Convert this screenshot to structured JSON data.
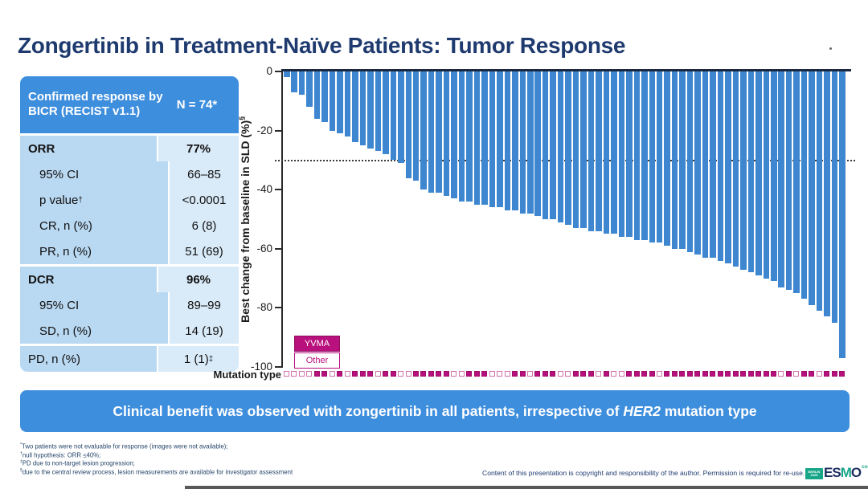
{
  "slide": {
    "title": "Zongertinib in Treatment-Naïve Patients: Tumor Response",
    "banner": {
      "text_before": "Clinical benefit was observed with zongertinib in all patients, irrespective of ",
      "gene": "HER2",
      "text_after": " mutation type"
    },
    "footnotes": [
      {
        "sup": "*",
        "text": "Two patients were not evaluable for response (images were not available);"
      },
      {
        "sup": "†",
        "text": "null hypothesis: ORR ≤40%;"
      },
      {
        "sup": "‡",
        "text": "PD due to non-target lesion progression;"
      },
      {
        "sup": "§",
        "text": "due to the central review process, lesion measurements are available for investigator assessment"
      }
    ],
    "copyright": "Content of this presentation is copyright and responsibility of the author. Permission is required for re-use.",
    "logo": {
      "badge": "BERLIN 2025",
      "name_es": "ES",
      "name_m": "M",
      "name_o": "O",
      "suffix": "congress"
    }
  },
  "table": {
    "header": {
      "title": "Confirmed response by BICR (RECIST v1.1)",
      "n": "N = 74*"
    },
    "rows": [
      {
        "label": "ORR",
        "value": "77%",
        "bold": true,
        "group_start": true
      },
      {
        "label": "95% CI",
        "value": "66–85",
        "indent": true
      },
      {
        "label": "p value",
        "label_sup": "†",
        "value": "<0.0001",
        "indent": true
      },
      {
        "label": "CR, n (%)",
        "value": "6 (8)",
        "indent": true
      },
      {
        "label": "PR, n (%)",
        "value": "51 (69)",
        "indent": true
      },
      {
        "label": "DCR",
        "value": "96%",
        "bold": true,
        "group_start": true
      },
      {
        "label": "95% CI",
        "value": "89–99",
        "indent": true
      },
      {
        "label": "SD, n (%)",
        "value": "14 (19)",
        "indent": true
      },
      {
        "label": "PD, n (%)",
        "value": "1 (1)",
        "value_sup": "‡",
        "group_start": true
      }
    ]
  },
  "chart_data": {
    "type": "bar",
    "subtype": "waterfall",
    "title": "",
    "ylabel": "Best change from baseline in SLD (%)",
    "ylabel_sup": "§",
    "xlabel": "Mutation type",
    "ylim": [
      -100,
      0
    ],
    "yticks": [
      0,
      -20,
      -40,
      -60,
      -80,
      -100
    ],
    "reference_line": -30,
    "bar_color": "#3e87d0",
    "accent_color": "#b8107c",
    "legend_position": "bottom-left",
    "legend": [
      {
        "label": "YVMA",
        "fill": true
      },
      {
        "label": "Other",
        "fill": false
      }
    ],
    "values": [
      -2,
      -7,
      -8,
      -12,
      -16,
      -17,
      -20,
      -21,
      -22,
      -24,
      -25,
      -26,
      -27,
      -28,
      -30,
      -31,
      -36,
      -37,
      -40,
      -41,
      -41,
      -42,
      -43,
      -44,
      -44,
      -45,
      -45,
      -46,
      -46,
      -47,
      -47,
      -48,
      -48,
      -49,
      -50,
      -50,
      -51,
      -52,
      -53,
      -53,
      -54,
      -54,
      -55,
      -55,
      -56,
      -56,
      -57,
      -57,
      -58,
      -58,
      -59,
      -60,
      -60,
      -61,
      -62,
      -63,
      -63,
      -64,
      -65,
      -66,
      -67,
      -68,
      -69,
      -70,
      -71,
      -73,
      -74,
      -75,
      -77,
      -79,
      -81,
      -83,
      -85,
      -97
    ],
    "mutation_type": [
      "Other",
      "Other",
      "Other",
      "Other",
      "YVMA",
      "YVMA",
      "Other",
      "YVMA",
      "Other",
      "YVMA",
      "YVMA",
      "YVMA",
      "Other",
      "YVMA",
      "YVMA",
      "Other",
      "Other",
      "YVMA",
      "YVMA",
      "YVMA",
      "YVMA",
      "YVMA",
      "Other",
      "Other",
      "YVMA",
      "YVMA",
      "YVMA",
      "Other",
      "Other",
      "Other",
      "YVMA",
      "YVMA",
      "Other",
      "YVMA",
      "YVMA",
      "YVMA",
      "Other",
      "Other",
      "YVMA",
      "YVMA",
      "YVMA",
      "Other",
      "YVMA",
      "Other",
      "Other",
      "YVMA",
      "YVMA",
      "YVMA",
      "YVMA",
      "Other",
      "YVMA",
      "YVMA",
      "YVMA",
      "YVMA",
      "YVMA",
      "YVMA",
      "YVMA",
      "YVMA",
      "YVMA",
      "YVMA",
      "YVMA",
      "YVMA",
      "YVMA",
      "YVMA",
      "YVMA",
      "Other",
      "YVMA",
      "Other",
      "YVMA",
      "YVMA",
      "Other",
      "YVMA",
      "YVMA",
      "YVMA"
    ]
  },
  "colors": {
    "title_navy": "#1e3a6e",
    "header_blue": "#3e8ede",
    "row_label_blue": "#b9d8f1",
    "row_value_blue": "#d9eaf8",
    "banner_blue": "#3e8ede",
    "bar_blue": "#3e87d0",
    "magenta": "#b8107c",
    "logo_green": "#18a688"
  }
}
